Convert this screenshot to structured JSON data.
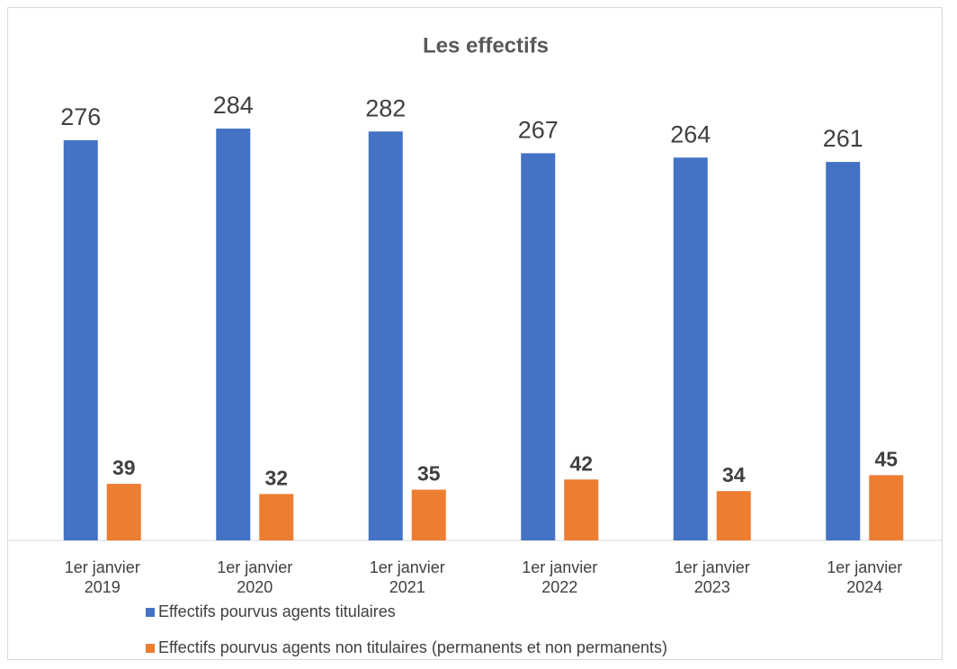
{
  "chart_data": {
    "type": "bar",
    "title": "Les effectifs",
    "categories": [
      "1er janvier 2019",
      "1er janvier 2020",
      "1er janvier 2021",
      "1er janvier 2022",
      "1er janvier 2023",
      "1er janvier 2024"
    ],
    "series": [
      {
        "name": "Effectifs pourvus agents titulaires",
        "color": "#4472c4",
        "values": [
          276,
          284,
          282,
          267,
          264,
          261
        ]
      },
      {
        "name": "Effectifs pourvus agents non titulaires (permanents et non permanents)",
        "color": "#ed7d31",
        "values": [
          39,
          32,
          35,
          42,
          34,
          45
        ]
      }
    ],
    "grid": false
  }
}
